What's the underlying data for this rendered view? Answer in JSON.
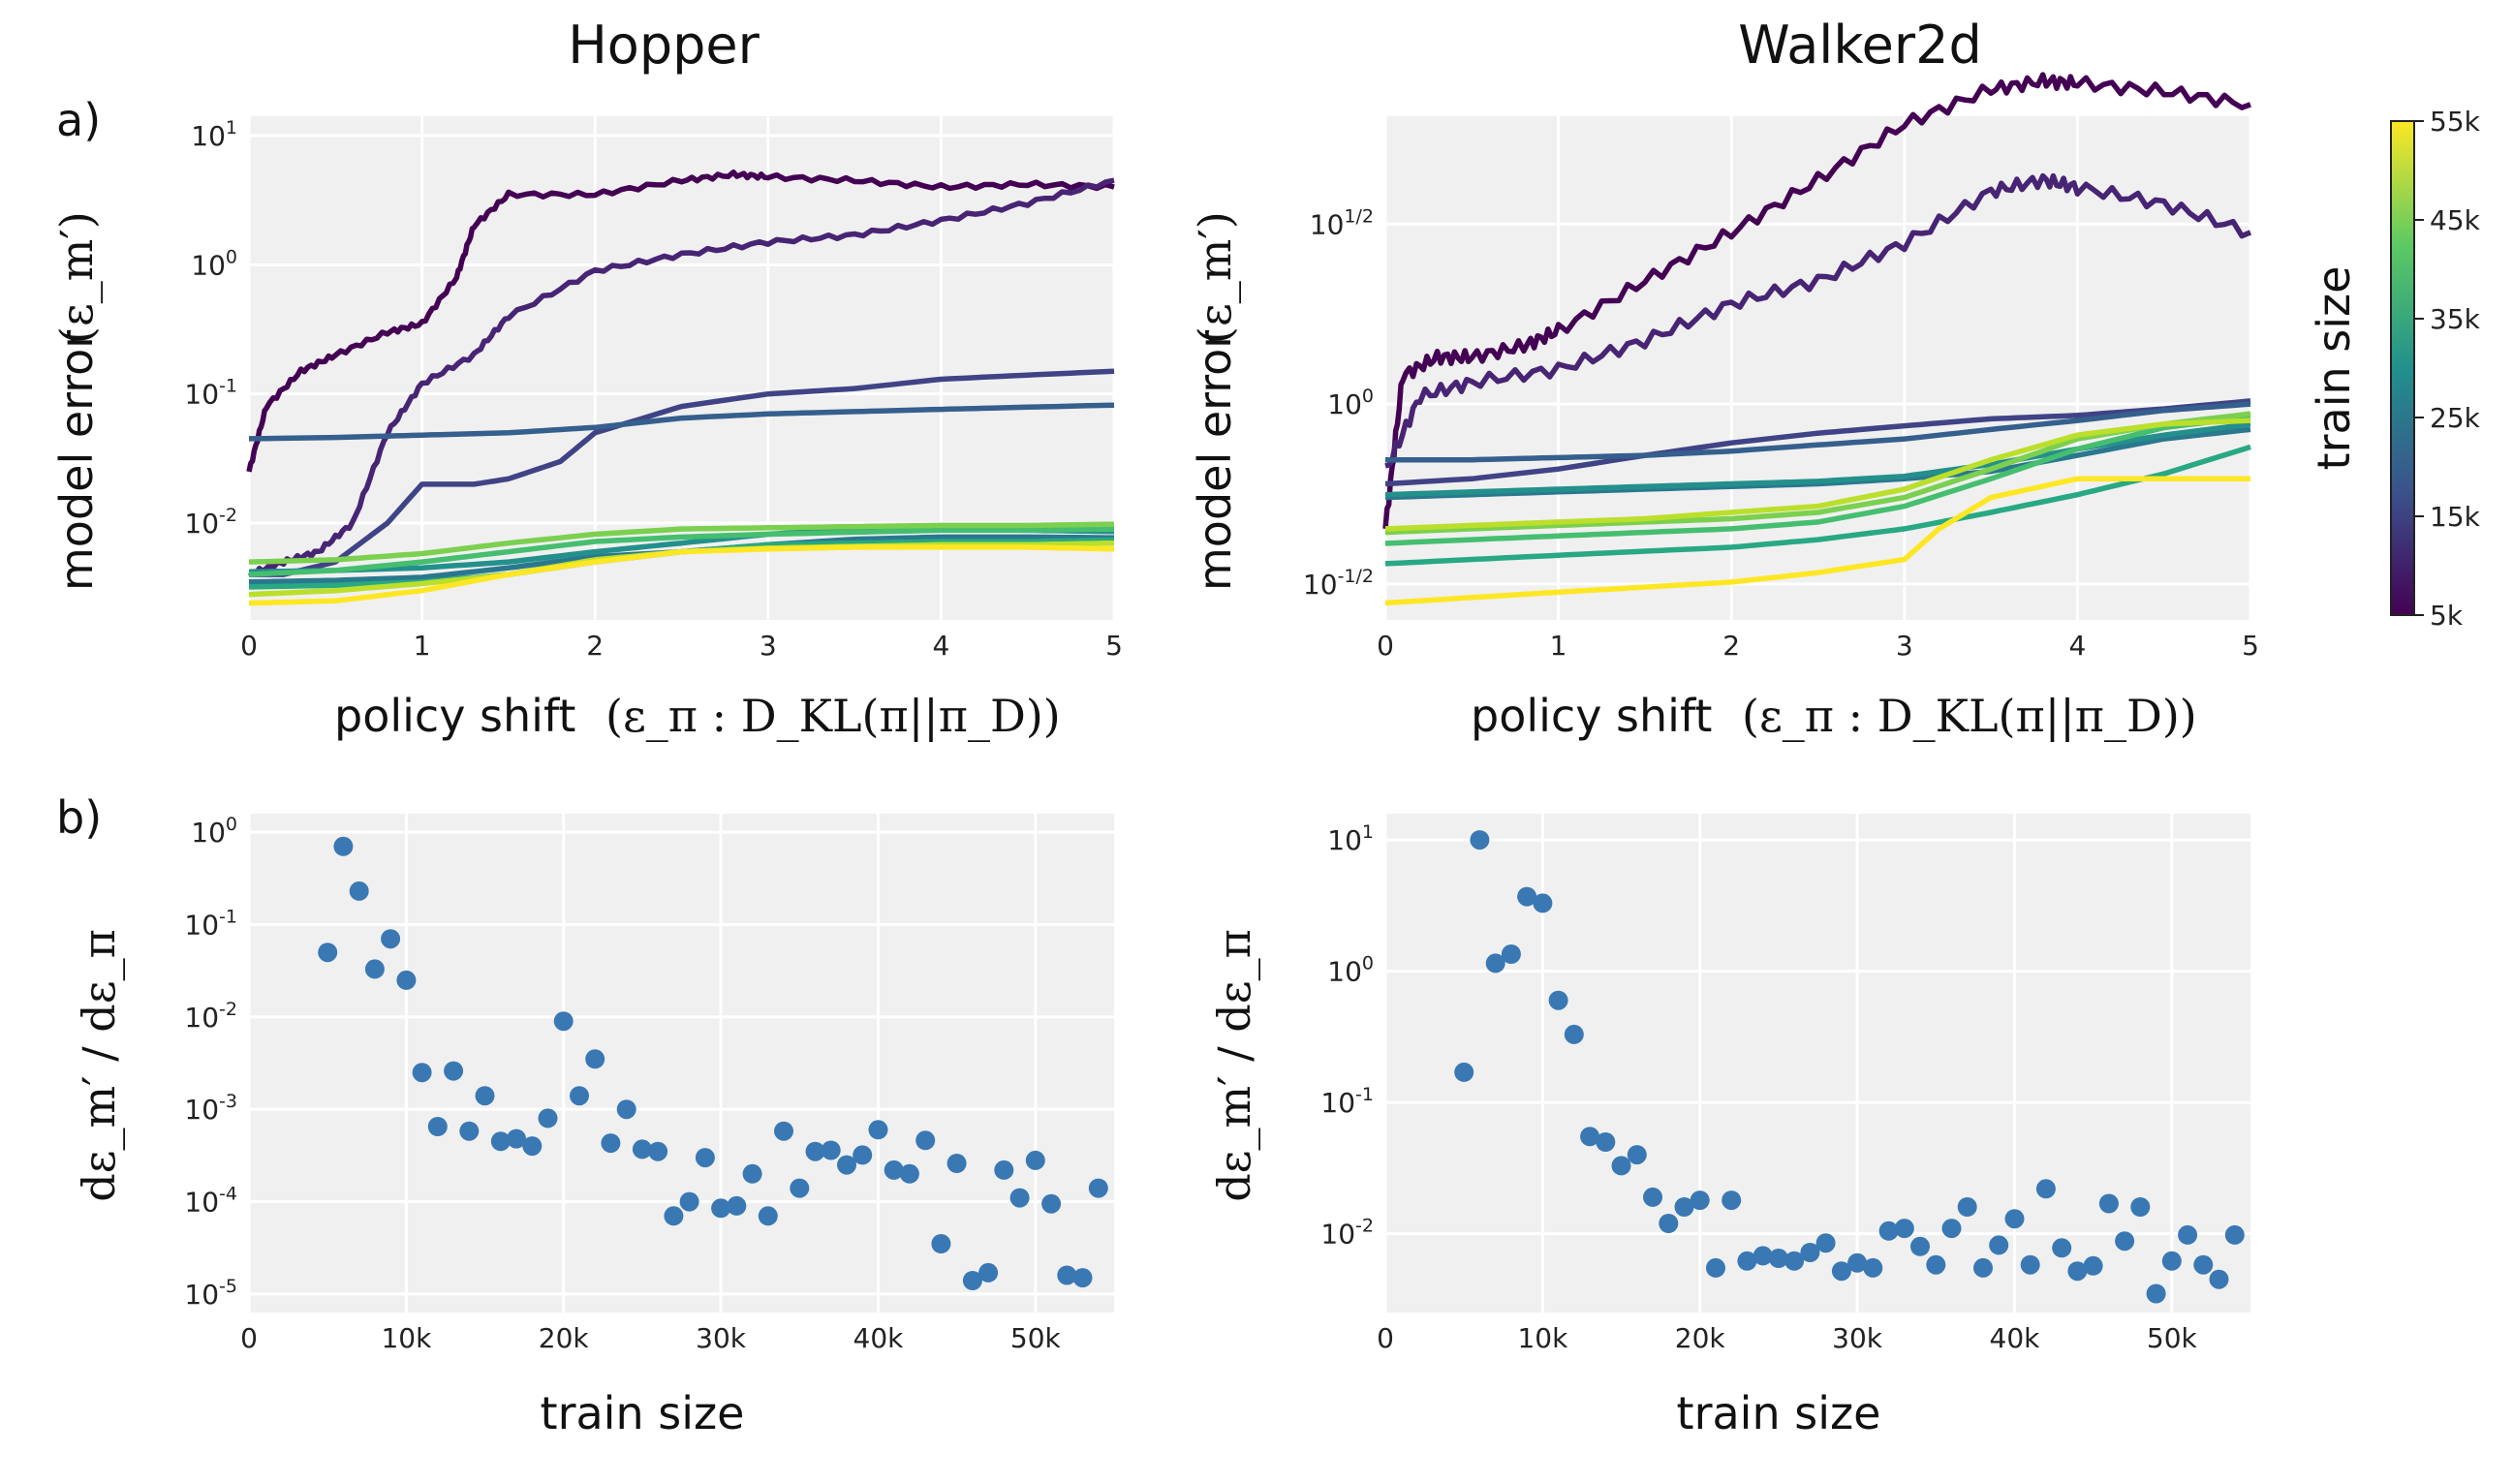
{
  "figure": {
    "row_labels": [
      "a)",
      "b)"
    ],
    "colorbar": {
      "label": "train size",
      "ticks": [
        "5k",
        "15k",
        "25k",
        "35k",
        "45k",
        "55k"
      ]
    },
    "panels": {
      "hopper_a": {
        "title": "Hopper",
        "xlabel_text": "policy shift",
        "xlabel_math": "(ε_π : D_KL(π||π_D))",
        "ylabel_text": "model error",
        "ylabel_math": "(ε_m′)",
        "xticks": [
          "0",
          "1",
          "2",
          "3",
          "4",
          "5"
        ],
        "yticks": [
          "10^1",
          "10^0",
          "10^-1",
          "10^-2"
        ]
      },
      "walker_a": {
        "title": "Walker2d",
        "xlabel_text": "policy shift",
        "xlabel_math": "(ε_π : D_KL(π||π_D))",
        "ylabel_text": "model error",
        "ylabel_math": "(ε_m′)",
        "xticks": [
          "0",
          "1",
          "2",
          "3",
          "4",
          "5"
        ],
        "yticks": [
          "10^1/2",
          "10^0",
          "10^-1/2"
        ]
      },
      "hopper_b": {
        "xlabel": "train size",
        "ylabel_math": "dε_m′ / dε_π",
        "xticks": [
          "0",
          "10k",
          "20k",
          "30k",
          "40k",
          "50k"
        ],
        "yticks": [
          "10^0",
          "10^-1",
          "10^-2",
          "10^-3",
          "10^-4",
          "10^-5"
        ]
      },
      "walker_b": {
        "xlabel": "train size",
        "ylabel_math": "dε_m′ / dε_π",
        "xticks": [
          "0",
          "10k",
          "20k",
          "30k",
          "40k",
          "50k"
        ],
        "yticks": [
          "10^1",
          "10^0",
          "10^-1",
          "10^-2"
        ]
      }
    }
  },
  "chart_data": [
    {
      "panel": "hopper_a",
      "type": "line",
      "title": "Hopper",
      "xlabel": "policy shift (ε_π : D_KL(π||π_D))",
      "ylabel": "model error (ε_m′)",
      "xlim": [
        0,
        5
      ],
      "ylim_log10": [
        -2.75,
        1.15
      ],
      "yscale": "log",
      "grid": true,
      "series": [
        {
          "train_size": 5000,
          "x": [
            0,
            0.1,
            0.3,
            0.5,
            0.8,
            1.0,
            1.2,
            1.3,
            1.5,
            2.0,
            2.5,
            2.8,
            3.0,
            3.5,
            4.0,
            4.5,
            5.0
          ],
          "y": [
            0.025,
            0.08,
            0.15,
            0.2,
            0.3,
            0.35,
            0.8,
            2.0,
            3.5,
            3.5,
            4.5,
            5.0,
            4.8,
            4.5,
            4.0,
            4.2,
            4.0
          ]
        },
        {
          "train_size": 10000,
          "x": [
            0,
            0.2,
            0.4,
            0.6,
            0.8,
            1.0,
            1.3,
            1.5,
            2.0,
            2.5,
            3.0,
            3.5,
            4.0,
            4.5,
            5.0
          ],
          "y": [
            0.004,
            0.005,
            0.006,
            0.01,
            0.05,
            0.12,
            0.2,
            0.4,
            0.9,
            1.2,
            1.5,
            1.7,
            2.2,
            3.0,
            4.5
          ]
        },
        {
          "train_size": 15000,
          "x": [
            0,
            0.2,
            0.5,
            0.8,
            1.0,
            1.3,
            1.5,
            1.8,
            2.0,
            2.5,
            3.0,
            3.5,
            4.0,
            4.5,
            5.0
          ],
          "y": [
            0.004,
            0.004,
            0.005,
            0.01,
            0.02,
            0.02,
            0.022,
            0.03,
            0.05,
            0.08,
            0.1,
            0.11,
            0.13,
            0.14,
            0.15
          ]
        },
        {
          "train_size": 20000,
          "x": [
            0,
            0.5,
            1.0,
            1.5,
            2.0,
            2.5,
            3.0,
            3.5,
            4.0,
            4.5,
            5.0
          ],
          "y": [
            0.045,
            0.046,
            0.048,
            0.05,
            0.055,
            0.065,
            0.07,
            0.073,
            0.076,
            0.079,
            0.082
          ]
        },
        {
          "train_size": 25000,
          "x": [
            0,
            0.5,
            1.0,
            1.5,
            2.0,
            2.5,
            3.0,
            3.5,
            4.0,
            4.5,
            5.0
          ],
          "y": [
            0.0035,
            0.0036,
            0.0038,
            0.0045,
            0.0055,
            0.006,
            0.0068,
            0.0075,
            0.0078,
            0.0078,
            0.0077
          ]
        },
        {
          "train_size": 30000,
          "x": [
            0,
            0.5,
            1.0,
            1.5,
            2.0,
            2.5,
            3.0,
            3.5,
            4.0,
            4.5,
            5.0
          ],
          "y": [
            0.0042,
            0.0043,
            0.0045,
            0.005,
            0.006,
            0.007,
            0.0082,
            0.009,
            0.009,
            0.0088,
            0.0086
          ]
        },
        {
          "train_size": 35000,
          "x": [
            0,
            0.5,
            1.0,
            1.5,
            2.0,
            2.5,
            3.0,
            3.5,
            4.0,
            4.5,
            5.0
          ],
          "y": [
            0.0032,
            0.0033,
            0.0035,
            0.004,
            0.005,
            0.006,
            0.0068,
            0.007,
            0.0072,
            0.0072,
            0.0074
          ]
        },
        {
          "train_size": 40000,
          "x": [
            0,
            0.5,
            1.0,
            1.5,
            2.0,
            2.5,
            3.0,
            3.5,
            4.0,
            4.5,
            5.0
          ],
          "y": [
            0.004,
            0.0043,
            0.005,
            0.006,
            0.0072,
            0.0078,
            0.0082,
            0.0085,
            0.0088,
            0.0088,
            0.009
          ]
        },
        {
          "train_size": 45000,
          "x": [
            0,
            0.5,
            1.0,
            1.5,
            2.0,
            2.5,
            3.0,
            3.5,
            4.0,
            4.5,
            5.0
          ],
          "y": [
            0.005,
            0.0052,
            0.0058,
            0.007,
            0.0082,
            0.009,
            0.0092,
            0.0094,
            0.0096,
            0.0096,
            0.0098
          ]
        },
        {
          "train_size": 50000,
          "x": [
            0,
            0.5,
            1.0,
            1.5,
            2.0,
            2.5,
            3.0,
            3.5,
            4.0,
            4.5,
            5.0
          ],
          "y": [
            0.0028,
            0.003,
            0.0034,
            0.004,
            0.0052,
            0.006,
            0.0064,
            0.0066,
            0.0068,
            0.0068,
            0.007
          ]
        },
        {
          "train_size": 55000,
          "x": [
            0,
            0.5,
            1.0,
            1.5,
            2.0,
            2.5,
            3.0,
            3.5,
            4.0,
            4.5,
            5.0
          ],
          "y": [
            0.0024,
            0.0025,
            0.003,
            0.004,
            0.005,
            0.006,
            0.0063,
            0.0065,
            0.0065,
            0.0065,
            0.0063
          ]
        }
      ]
    },
    {
      "panel": "walker_a",
      "type": "line",
      "title": "Walker2d",
      "xlabel": "policy shift (ε_π : D_KL(π||π_D))",
      "ylabel": "model error (ε_m′)",
      "xlim": [
        0,
        5
      ],
      "ylim_log10": [
        -0.6,
        0.8
      ],
      "yscale": "log",
      "grid": true,
      "series": [
        {
          "train_size": 5000,
          "x": [
            0,
            0.1,
            0.3,
            0.5,
            0.8,
            1.0,
            1.5,
            2.0,
            2.5,
            3.0,
            3.5,
            3.8,
            4.0,
            4.5,
            5.0
          ],
          "y": [
            0.45,
            1.2,
            1.35,
            1.35,
            1.45,
            1.6,
            2.2,
            3.0,
            4.2,
            6.0,
            7.5,
            7.9,
            7.8,
            7.4,
            6.8
          ]
        },
        {
          "train_size": 10000,
          "x": [
            0,
            0.2,
            0.5,
            1.0,
            1.5,
            2.0,
            2.5,
            3.0,
            3.5,
            3.8,
            4.0,
            4.5,
            5.0
          ],
          "y": [
            0.65,
            1.05,
            1.15,
            1.25,
            1.5,
            1.9,
            2.2,
            2.8,
            3.9,
            4.2,
            4.0,
            3.6,
            3.0
          ]
        },
        {
          "train_size": 15000,
          "x": [
            0,
            0.5,
            1.0,
            1.5,
            2.0,
            2.5,
            3.0,
            3.5,
            4.0,
            4.5,
            5.0
          ],
          "y": [
            0.6,
            0.62,
            0.66,
            0.72,
            0.78,
            0.83,
            0.87,
            0.91,
            0.93,
            0.97,
            1.02
          ]
        },
        {
          "train_size": 20000,
          "x": [
            0,
            0.5,
            1.0,
            1.5,
            2.0,
            2.5,
            3.0,
            3.5,
            4.0,
            4.5,
            5.0
          ],
          "y": [
            0.7,
            0.7,
            0.71,
            0.72,
            0.74,
            0.77,
            0.8,
            0.85,
            0.9,
            0.96,
            1.0
          ]
        },
        {
          "train_size": 25000,
          "x": [
            0,
            0.5,
            1.0,
            1.5,
            2.0,
            2.5,
            3.0,
            3.5,
            4.0,
            4.5,
            5.0
          ],
          "y": [
            0.55,
            0.56,
            0.57,
            0.58,
            0.59,
            0.6,
            0.62,
            0.65,
            0.72,
            0.8,
            0.85
          ]
        },
        {
          "train_size": 30000,
          "x": [
            0,
            0.5,
            1.0,
            1.5,
            2.0,
            2.5,
            3.0,
            3.5,
            4.0,
            4.5,
            5.0
          ],
          "y": [
            0.56,
            0.57,
            0.58,
            0.59,
            0.6,
            0.61,
            0.63,
            0.68,
            0.75,
            0.82,
            0.88
          ]
        },
        {
          "train_size": 35000,
          "x": [
            0,
            0.5,
            1.0,
            1.5,
            2.0,
            2.5,
            3.0,
            3.5,
            4.0,
            4.5,
            5.0
          ],
          "y": [
            0.36,
            0.37,
            0.38,
            0.39,
            0.4,
            0.42,
            0.45,
            0.5,
            0.56,
            0.64,
            0.76
          ]
        },
        {
          "train_size": 40000,
          "x": [
            0,
            0.5,
            1.0,
            1.5,
            2.0,
            2.5,
            3.0,
            3.5,
            4.0,
            4.5,
            5.0
          ],
          "y": [
            0.41,
            0.42,
            0.43,
            0.44,
            0.45,
            0.47,
            0.52,
            0.62,
            0.75,
            0.86,
            0.92
          ]
        },
        {
          "train_size": 45000,
          "x": [
            0,
            0.5,
            1.0,
            1.5,
            2.0,
            2.5,
            3.0,
            3.5,
            4.0,
            4.5,
            5.0
          ],
          "y": [
            0.44,
            0.45,
            0.46,
            0.47,
            0.48,
            0.5,
            0.55,
            0.66,
            0.8,
            0.88,
            0.94
          ]
        },
        {
          "train_size": 50000,
          "x": [
            0,
            0.5,
            1.0,
            1.5,
            2.0,
            2.5,
            3.0,
            3.5,
            4.0,
            4.5,
            5.0
          ],
          "y": [
            0.45,
            0.46,
            0.47,
            0.48,
            0.5,
            0.52,
            0.58,
            0.7,
            0.82,
            0.88,
            0.9
          ]
        },
        {
          "train_size": 55000,
          "x": [
            0,
            0.5,
            1.0,
            1.5,
            2.0,
            2.5,
            3.0,
            3.2,
            3.5,
            4.0,
            4.5,
            5.0
          ],
          "y": [
            0.28,
            0.29,
            0.3,
            0.31,
            0.32,
            0.34,
            0.37,
            0.45,
            0.55,
            0.62,
            0.62,
            0.62
          ]
        }
      ]
    },
    {
      "panel": "hopper_b",
      "type": "scatter",
      "xlabel": "train size",
      "ylabel": "dε_m′ / dε_π",
      "xlim": [
        0,
        55000
      ],
      "ylim_log10": [
        -5.2,
        0.2
      ],
      "yscale": "log",
      "grid": true,
      "x": [
        5000,
        6000,
        7000,
        8000,
        9000,
        10000,
        11000,
        12000,
        13000,
        14000,
        15000,
        16000,
        17000,
        18000,
        19000,
        20000,
        21000,
        22000,
        23000,
        24000,
        25000,
        26000,
        27000,
        28000,
        29000,
        30000,
        31000,
        32000,
        33000,
        34000,
        35000,
        36000,
        37000,
        38000,
        39000,
        40000,
        41000,
        42000,
        43000,
        44000,
        45000,
        46000,
        47000,
        48000,
        49000,
        50000,
        51000,
        52000,
        53000,
        54000
      ],
      "y": [
        0.05,
        0.7,
        0.23,
        0.033,
        0.07,
        0.025,
        0.0025,
        0.00065,
        0.0026,
        0.00058,
        0.0014,
        0.00045,
        0.00048,
        0.0004,
        0.0008,
        0.009,
        0.0014,
        0.0035,
        0.00043,
        0.001,
        0.00037,
        0.00035,
        7e-05,
        0.0001,
        0.0003,
        8.5e-05,
        9e-05,
        0.0002,
        7e-05,
        0.00058,
        0.00014,
        0.00035,
        0.00036,
        0.00025,
        0.00032,
        0.0006,
        0.00022,
        0.0002,
        0.00046,
        3.5e-05,
        0.00026,
        1.4e-05,
        1.7e-05,
        0.00022,
        0.00011,
        0.00028,
        9.5e-05,
        1.6e-05,
        1.5e-05,
        0.00014
      ]
    },
    {
      "panel": "walker_b",
      "type": "scatter",
      "xlabel": "train size",
      "ylabel": "dε_m′ / dε_π",
      "xlim": [
        0,
        55000
      ],
      "ylim_log10": [
        -2.6,
        1.2
      ],
      "yscale": "log",
      "grid": true,
      "x": [
        5000,
        6000,
        7000,
        8000,
        9000,
        10000,
        11000,
        12000,
        13000,
        14000,
        15000,
        16000,
        17000,
        18000,
        19000,
        20000,
        21000,
        22000,
        23000,
        24000,
        25000,
        26000,
        27000,
        28000,
        29000,
        30000,
        31000,
        32000,
        33000,
        34000,
        35000,
        36000,
        37000,
        38000,
        39000,
        40000,
        41000,
        42000,
        43000,
        44000,
        45000,
        46000,
        47000,
        48000,
        49000,
        50000,
        51000,
        52000,
        53000,
        54000
      ],
      "y": [
        0.17,
        10,
        1.15,
        1.35,
        3.7,
        3.3,
        0.6,
        0.33,
        0.055,
        0.05,
        0.033,
        0.04,
        0.019,
        0.012,
        0.016,
        0.018,
        0.0055,
        0.018,
        0.0062,
        0.0068,
        0.0065,
        0.0062,
        0.0072,
        0.0085,
        0.0052,
        0.006,
        0.0055,
        0.0105,
        0.011,
        0.008,
        0.0058,
        0.011,
        0.016,
        0.0055,
        0.0082,
        0.013,
        0.0058,
        0.022,
        0.0078,
        0.0052,
        0.0057,
        0.017,
        0.0088,
        0.016,
        0.0035,
        0.0062,
        0.0098,
        0.0058,
        0.0045,
        0.0098
      ]
    }
  ]
}
